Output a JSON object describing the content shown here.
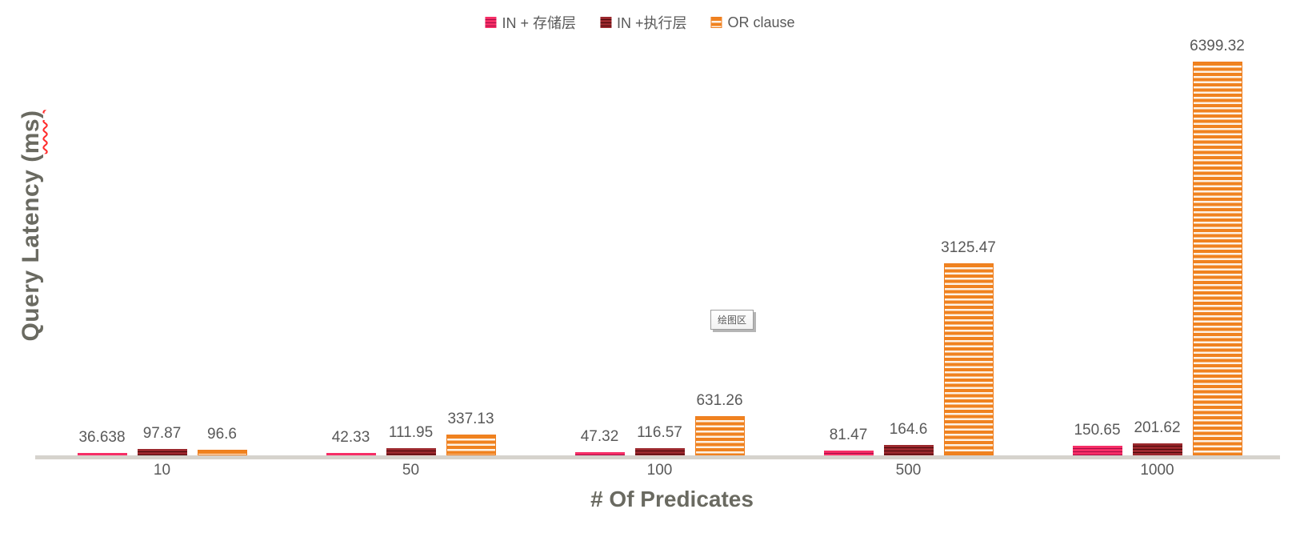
{
  "chart_data": {
    "type": "bar",
    "title": "",
    "xlabel": "# Of Predicates",
    "ylabel": "Query Latency (ms)",
    "categories": [
      "10",
      "50",
      "100",
      "500",
      "1000"
    ],
    "series": [
      {
        "name": "IN + 存储层",
        "color": "#f62e66",
        "stripe_color": "#a50b44",
        "values": [
          36.638,
          42.33,
          47.32,
          81.47,
          150.65
        ],
        "labels": [
          "36.638",
          "42.33",
          "47.32",
          "81.47",
          "150.65"
        ]
      },
      {
        "name": "IN +执行层",
        "color": "#9b282d",
        "stripe_color": "#490709",
        "values": [
          97.87,
          111.95,
          116.57,
          164.6,
          201.62
        ],
        "labels": [
          "97.87",
          "111.95",
          "116.57",
          "164.6",
          "201.62"
        ]
      },
      {
        "name": "OR clause",
        "color": "#f0821f",
        "stripe_color": "#fdf2e6",
        "values": [
          96.6,
          337.13,
          631.26,
          3125.47,
          6399.32
        ],
        "labels": [
          "96.6",
          "337.13",
          "631.26",
          "3125.47",
          "6399.32"
        ]
      }
    ],
    "legend_position": "top",
    "grid": false,
    "ylim": [
      0,
      6399.32
    ]
  },
  "y_axis": {
    "title_prefix": "Query Latency (",
    "title_misspelled": "ms)"
  },
  "x_axis": {
    "title": "# Of Predicates"
  },
  "tooltip": {
    "text": "绘图区"
  },
  "colors": {
    "axis_line": "#d6d3cd",
    "label_text": "#595959",
    "axis_title_text": "#6a6a61",
    "spellcheck_underline": "#ff2a2a"
  }
}
